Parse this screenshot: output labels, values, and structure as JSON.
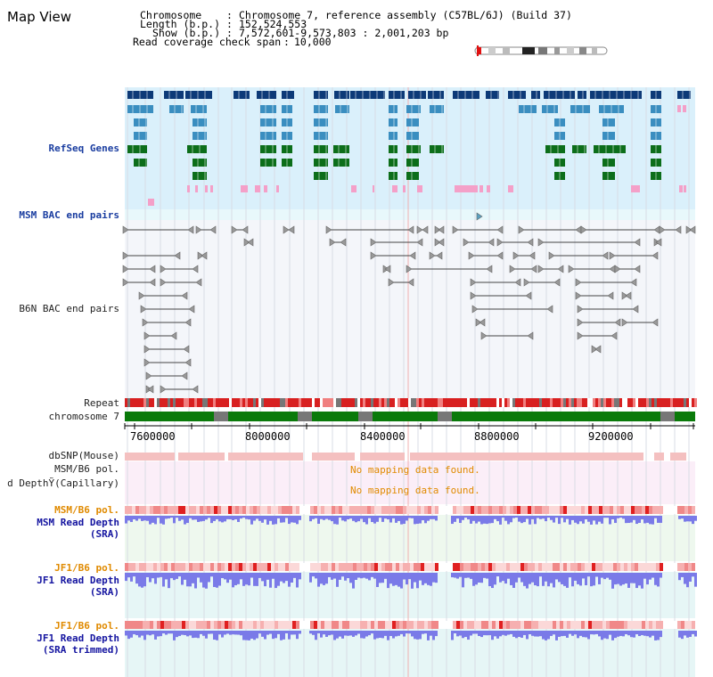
{
  "view": {
    "title": "Map View"
  },
  "header": {
    "chromosome_label": "Chromosome",
    "chromosome_value": "Chromosome 7, reference assembly (C57BL/6J) (Build 37)",
    "length_label": "Length (b.p.)",
    "length_value": "152,524,553",
    "show_label": "Show (b.p.)",
    "show_value": "7,572,601-9,573,803 : 2,001,203 bp",
    "coverage_label": "Read coverage check span",
    "coverage_value": "10,000"
  },
  "tracks": {
    "refseq": "RefSeq Genes",
    "msm_bac": "MSM BAC end pairs",
    "b6n_bac": "B6N BAC end pairs",
    "repeat": "Repeat",
    "chromosome": "chromosome 7",
    "dbsnp": "dbSNP(Mouse)",
    "msm_b6_pol": "MSM/B6 pol.",
    "read_depth_capillary": "d DepthỸ(Capillary)",
    "msm_b6_pol2": "MSM/B6 pol.",
    "msm_read_depth_1": "MSM Read Depth",
    "msm_read_depth_2": "(SRA)",
    "jf1_b6_pol": "JF1/B6 pol.",
    "jf1_read_depth_1": "JF1 Read Depth",
    "jf1_read_depth_2": "(SRA)",
    "jf1_b6_pol2": "JF1/B6 pol.",
    "jf1_trim_1": "JF1 Read Depth",
    "jf1_trim_2": "(SRA trimmed)"
  },
  "messages": {
    "no_mapping_1": "No mapping data found.",
    "no_mapping_2": "No mapping data found."
  },
  "axis": {
    "ticks": [
      "7600000",
      "8000000",
      "8400000",
      "8800000",
      "9200000"
    ]
  },
  "colors": {
    "refseq_bg": "#daf0fb",
    "gene_dark": "#0d3a78",
    "gene_mid": "#3a8ec0",
    "gene_green": "#0c6e1a",
    "gene_pink": "#f4a0c8",
    "repeat_red": "#d82020",
    "chrom_green": "#0a7a0a",
    "snp_pink": "#f4c0c0",
    "depth_blue": "#7a7ae8"
  }
}
